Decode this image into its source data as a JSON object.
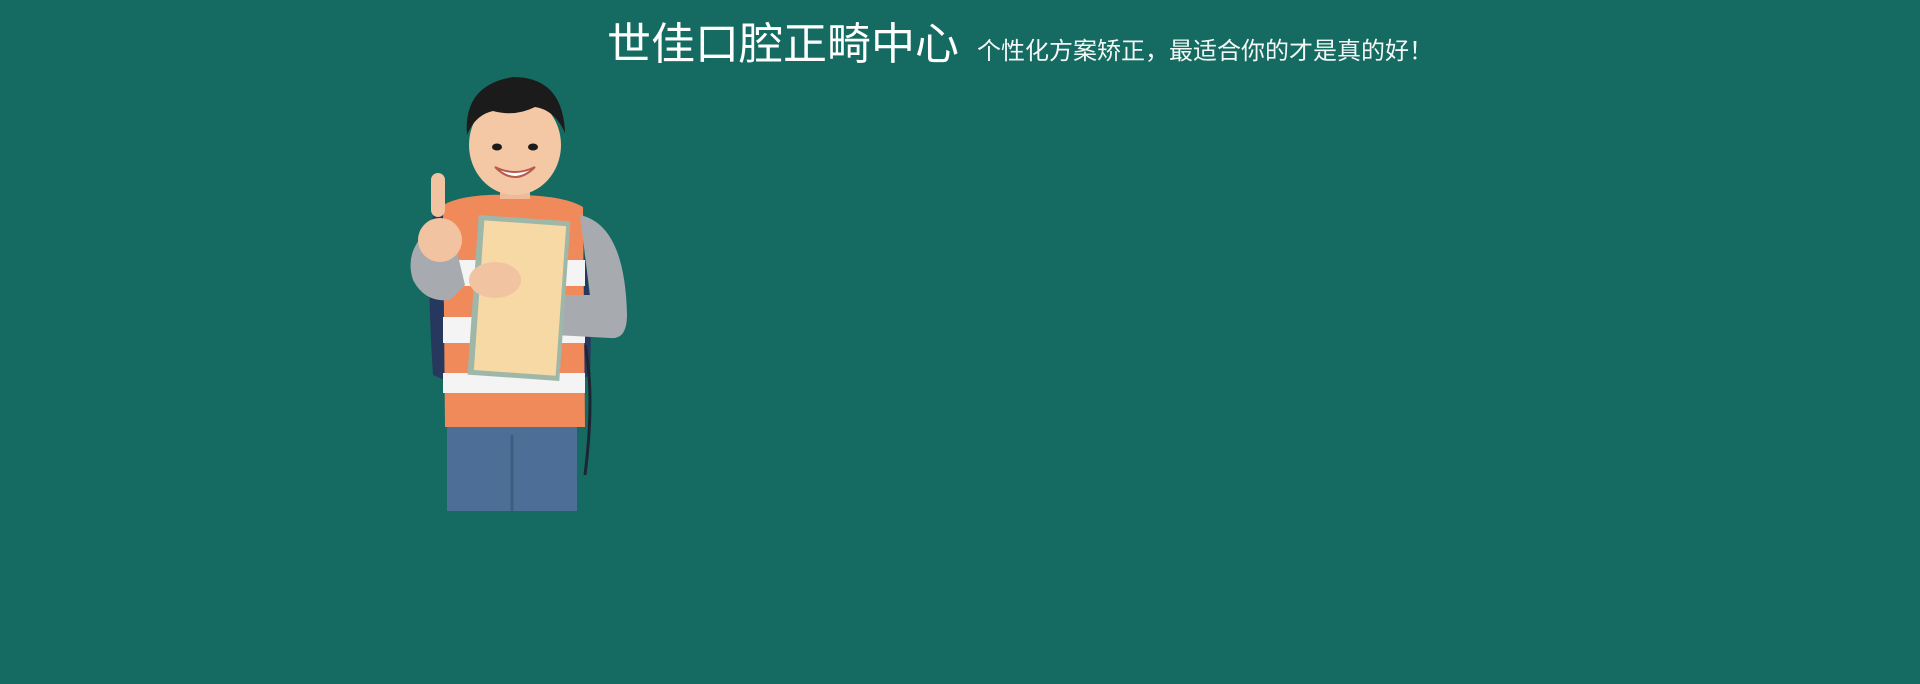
{
  "banner": {
    "title": "世佳口腔正畸中心",
    "slogan": "个性化方案矫正，最适合你的才是真的好！",
    "colors": {
      "background": "#156b61",
      "text": "#ffffff"
    },
    "image": {
      "icon": "boy-thumbs-up-with-book-illustration"
    }
  }
}
